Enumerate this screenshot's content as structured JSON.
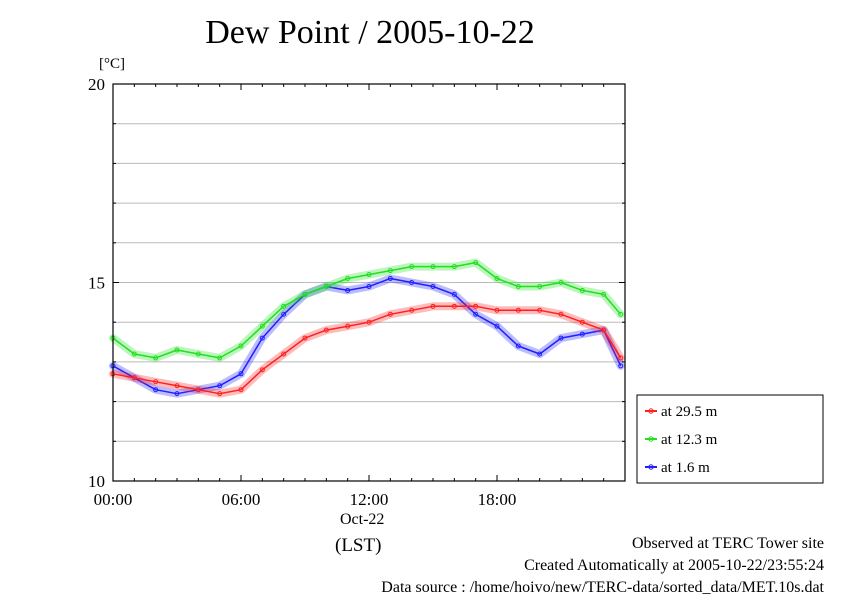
{
  "title": "Dew Point / 2005-10-22",
  "unit_label": "[°C]",
  "x_date_label": "Oct-22",
  "x_timezone_label": "(LST)",
  "footer": {
    "site": "Observed at TERC Tower site",
    "created": "Created Automatically at 2005-10-22/23:55:24",
    "source": "Data source : /home/hoivo/new/TERC-data/sorted_data/MET.10s.dat"
  },
  "colors": {
    "series_29_5m": "#ff2020",
    "series_12_3m": "#20e020",
    "series_1_6m": "#2020ff",
    "grid": "#bbbbbb"
  },
  "chart_data": {
    "type": "line",
    "title": "Dew Point / 2005-10-22",
    "xlabel": "(LST)",
    "ylabel": "[°C]",
    "x_unit": "hour of day (LST)",
    "xlim": [
      0,
      24
    ],
    "ylim": [
      10,
      20
    ],
    "x_ticks": [
      0,
      6,
      12,
      18
    ],
    "x_tick_labels": [
      "00:00",
      "06:00",
      "12:00",
      "18:00"
    ],
    "y_ticks": [
      10,
      15,
      20
    ],
    "y_tick_labels": [
      "10",
      "15",
      "20"
    ],
    "grid": true,
    "legend_position": "bottom-right outside plot",
    "x": [
      0,
      1,
      2,
      3,
      4,
      5,
      6,
      7,
      8,
      9,
      10,
      11,
      12,
      13,
      14,
      15,
      16,
      17,
      18,
      19,
      20,
      21,
      22,
      23,
      23.8
    ],
    "series": [
      {
        "name": "at 29.5 m",
        "values": [
          12.7,
          12.6,
          12.5,
          12.4,
          12.3,
          12.2,
          12.3,
          12.8,
          13.2,
          13.6,
          13.8,
          13.9,
          14.0,
          14.2,
          14.3,
          14.4,
          14.4,
          14.4,
          14.3,
          14.3,
          14.3,
          14.2,
          14.0,
          13.8,
          13.1
        ]
      },
      {
        "name": "at 12.3 m",
        "values": [
          13.6,
          13.2,
          13.1,
          13.3,
          13.2,
          13.1,
          13.4,
          13.9,
          14.4,
          14.7,
          14.9,
          15.1,
          15.2,
          15.3,
          15.4,
          15.4,
          15.4,
          15.5,
          15.1,
          14.9,
          14.9,
          15.0,
          14.8,
          14.7,
          14.2
        ]
      },
      {
        "name": "at 1.6 m",
        "values": [
          12.9,
          12.6,
          12.3,
          12.2,
          12.3,
          12.4,
          12.7,
          13.6,
          14.2,
          14.7,
          14.9,
          14.8,
          14.9,
          15.1,
          15.0,
          14.9,
          14.7,
          14.2,
          13.9,
          13.4,
          13.2,
          13.6,
          13.7,
          13.8,
          12.9
        ]
      }
    ]
  }
}
